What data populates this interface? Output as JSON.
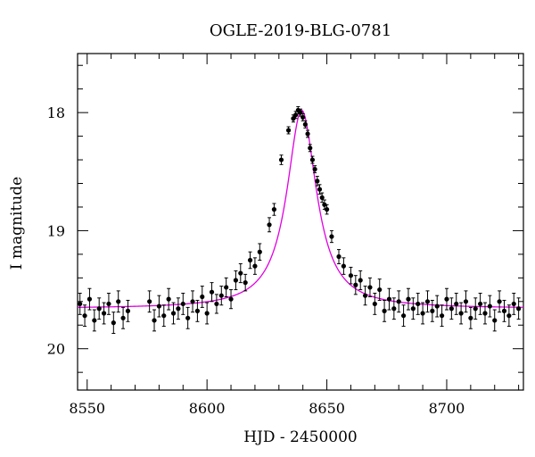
{
  "chart_data": {
    "type": "scatter",
    "title": "OGLE-2019-BLG-0781",
    "xlabel": "HJD - 2450000",
    "ylabel": "I magnitude",
    "xlim": [
      8546,
      8732
    ],
    "ylim": [
      20.35,
      17.5
    ],
    "y_inverted": true,
    "xticks": [
      8550,
      8600,
      8650,
      8700
    ],
    "xtick_labels": [
      "8550",
      "8600",
      "8650",
      "8700"
    ],
    "yticks": [
      18,
      19,
      20
    ],
    "ytick_labels": [
      "18",
      "19",
      "20"
    ],
    "grid": false,
    "legend": "none",
    "colors": {
      "points": "#000000",
      "model": "#e000e0",
      "axes": "#000000"
    },
    "series": [
      {
        "type": "scatter-errorbars",
        "x": [
          8547,
          8549,
          8551,
          8553,
          8555,
          8557,
          8559,
          8561,
          8563,
          8565,
          8567,
          8576,
          8578,
          8580,
          8582,
          8584,
          8586,
          8588,
          8590,
          8592,
          8594,
          8596,
          8598,
          8600,
          8602,
          8604,
          8606,
          8608,
          8610,
          8612,
          8614,
          8616,
          8618,
          8620,
          8622,
          8626,
          8628,
          8631,
          8634,
          8636,
          8637,
          8638,
          8639,
          8640,
          8641,
          8642,
          8643,
          8644,
          8645,
          8646,
          8647,
          8648,
          8649,
          8650,
          8652,
          8655,
          8657,
          8660,
          8662,
          8664,
          8666,
          8668,
          8670,
          8672,
          8674,
          8676,
          8678,
          8680,
          8682,
          8684,
          8686,
          8688,
          8690,
          8692,
          8694,
          8696,
          8698,
          8700,
          8702,
          8704,
          8706,
          8708,
          8710,
          8712,
          8714,
          8716,
          8718,
          8720,
          8722,
          8724,
          8726,
          8728,
          8730
        ],
        "y": [
          19.62,
          19.72,
          19.58,
          19.76,
          19.66,
          19.7,
          19.62,
          19.78,
          19.6,
          19.74,
          19.68,
          19.6,
          19.76,
          19.64,
          19.72,
          19.58,
          19.7,
          19.66,
          19.62,
          19.74,
          19.6,
          19.68,
          19.56,
          19.7,
          19.52,
          19.62,
          19.55,
          19.48,
          19.58,
          19.42,
          19.36,
          19.44,
          19.25,
          19.3,
          19.18,
          18.95,
          18.82,
          18.4,
          18.15,
          18.05,
          18.02,
          17.98,
          18.0,
          18.04,
          18.1,
          18.18,
          18.3,
          18.4,
          18.48,
          18.58,
          18.65,
          18.72,
          18.78,
          18.82,
          19.05,
          19.22,
          19.3,
          19.38,
          19.46,
          19.42,
          19.55,
          19.48,
          19.62,
          19.5,
          19.68,
          19.58,
          19.66,
          19.6,
          19.72,
          19.58,
          19.66,
          19.62,
          19.7,
          19.6,
          19.68,
          19.64,
          19.72,
          19.58,
          19.66,
          19.62,
          19.7,
          19.6,
          19.74,
          19.66,
          19.62,
          19.7,
          19.64,
          19.76,
          19.6,
          19.68,
          19.72,
          19.62,
          19.66
        ],
        "err": [
          0.09,
          0.09,
          0.09,
          0.09,
          0.09,
          0.09,
          0.09,
          0.09,
          0.09,
          0.09,
          0.09,
          0.09,
          0.09,
          0.09,
          0.09,
          0.09,
          0.09,
          0.09,
          0.09,
          0.09,
          0.09,
          0.09,
          0.09,
          0.09,
          0.08,
          0.08,
          0.08,
          0.08,
          0.08,
          0.08,
          0.08,
          0.07,
          0.07,
          0.07,
          0.07,
          0.06,
          0.05,
          0.04,
          0.03,
          0.03,
          0.03,
          0.03,
          0.03,
          0.03,
          0.03,
          0.03,
          0.03,
          0.03,
          0.03,
          0.04,
          0.04,
          0.04,
          0.04,
          0.04,
          0.05,
          0.06,
          0.07,
          0.07,
          0.08,
          0.08,
          0.08,
          0.08,
          0.09,
          0.09,
          0.09,
          0.09,
          0.09,
          0.09,
          0.09,
          0.09,
          0.09,
          0.09,
          0.09,
          0.09,
          0.09,
          0.09,
          0.09,
          0.09,
          0.09,
          0.09,
          0.09,
          0.09,
          0.09,
          0.09,
          0.09,
          0.09,
          0.09,
          0.09,
          0.09,
          0.09,
          0.09,
          0.09,
          0.09
        ]
      },
      {
        "type": "model-curve",
        "t0": 8639.5,
        "base": 19.66,
        "peak": 17.98,
        "tE": 7.5,
        "xlim": [
          8546,
          8732
        ]
      }
    ]
  }
}
